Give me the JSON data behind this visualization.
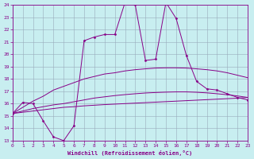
{
  "xlabel": "Windchill (Refroidissement éolien,°C)",
  "xlim": [
    0,
    23
  ],
  "ylim": [
    13,
    24
  ],
  "yticks": [
    13,
    14,
    15,
    16,
    17,
    18,
    19,
    20,
    21,
    22,
    23,
    24
  ],
  "xticks": [
    0,
    1,
    2,
    3,
    4,
    5,
    6,
    7,
    8,
    9,
    10,
    11,
    12,
    13,
    14,
    15,
    16,
    17,
    18,
    19,
    20,
    21,
    22,
    23
  ],
  "bg_color": "#c8eef0",
  "line_color": "#880088",
  "grid_color": "#99aabb",
  "spiky_x": [
    0,
    1,
    2,
    3,
    4,
    5,
    6,
    7,
    8,
    9,
    10,
    11,
    12,
    13,
    14,
    15,
    16,
    17,
    18,
    19,
    20,
    21,
    22,
    23
  ],
  "spiky_y": [
    15.2,
    16.1,
    16.0,
    14.6,
    13.3,
    13.0,
    14.2,
    21.1,
    21.4,
    21.6,
    21.6,
    24.2,
    24.0,
    19.5,
    19.6,
    24.2,
    22.9,
    19.9,
    17.8,
    17.2,
    17.1,
    16.8,
    16.5,
    16.3
  ],
  "smooth1_x": [
    0,
    1,
    2,
    3,
    4,
    5,
    6,
    7,
    8,
    9,
    10,
    11,
    12,
    13,
    14,
    15,
    16,
    17,
    18,
    19,
    20,
    21,
    22,
    23
  ],
  "smooth1_y": [
    15.2,
    15.7,
    16.2,
    16.6,
    17.1,
    17.4,
    17.7,
    18.0,
    18.2,
    18.4,
    18.5,
    18.65,
    18.75,
    18.82,
    18.88,
    18.9,
    18.9,
    18.88,
    18.82,
    18.75,
    18.65,
    18.5,
    18.3,
    18.1
  ],
  "smooth2_x": [
    0,
    1,
    2,
    3,
    4,
    5,
    6,
    7,
    8,
    9,
    10,
    11,
    12,
    13,
    14,
    15,
    16,
    17,
    18,
    19,
    20,
    21,
    22,
    23
  ],
  "smooth2_y": [
    15.2,
    15.4,
    15.6,
    15.75,
    15.9,
    16.0,
    16.15,
    16.3,
    16.45,
    16.55,
    16.65,
    16.73,
    16.8,
    16.86,
    16.9,
    16.93,
    16.95,
    16.95,
    16.92,
    16.87,
    16.8,
    16.72,
    16.62,
    16.5
  ],
  "smooth3_x": [
    0,
    1,
    2,
    3,
    4,
    5,
    6,
    7,
    8,
    9,
    10,
    11,
    12,
    13,
    14,
    15,
    16,
    17,
    18,
    19,
    20,
    21,
    22,
    23
  ],
  "smooth3_y": [
    15.2,
    15.3,
    15.4,
    15.5,
    15.6,
    15.7,
    15.75,
    15.82,
    15.87,
    15.92,
    15.96,
    16.0,
    16.04,
    16.08,
    16.12,
    16.16,
    16.2,
    16.24,
    16.28,
    16.32,
    16.36,
    16.4,
    16.44,
    16.5
  ]
}
